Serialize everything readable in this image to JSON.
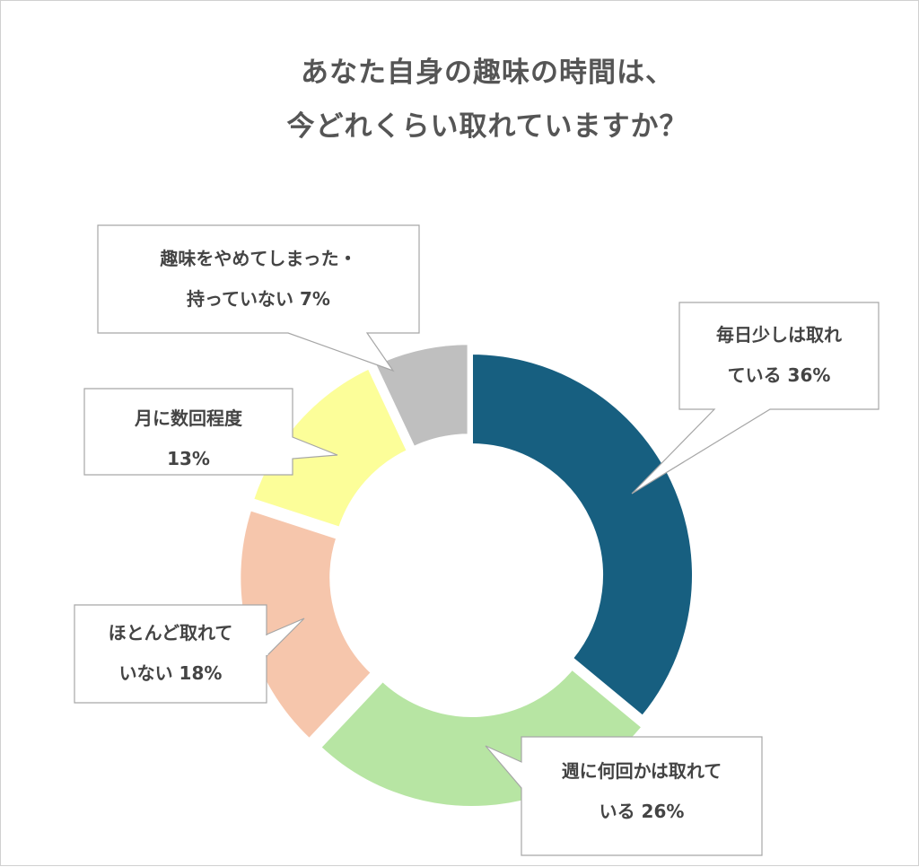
{
  "chart_data": {
    "type": "pie",
    "title_lines": [
      "あなた自身の趣味の時間は、",
      "今どれくらい取れていますか？"
    ],
    "slices": [
      {
        "line1": "毎日少しは取れ",
        "line2": "ている 36%",
        "value": 36,
        "color": "#175f80"
      },
      {
        "line1": "週に何回かは取れて",
        "line2": "いる 26%",
        "value": 26,
        "color": "#b7e5a3"
      },
      {
        "line1": "ほとんど取れて",
        "line2": "いない 18%",
        "value": 18,
        "color": "#f6c6ac"
      },
      {
        "line1": "月に数回程度",
        "line2": "13%",
        "value": 13,
        "color": "#fcfe99"
      },
      {
        "line1": "趣味をやめてしまった・",
        "line2": "持っていない 7%",
        "value": 7,
        "color": "#bfbfbf"
      }
    ]
  }
}
